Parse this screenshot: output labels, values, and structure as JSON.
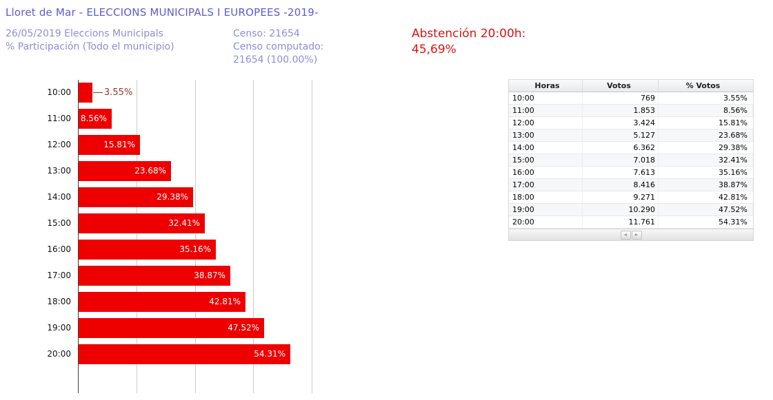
{
  "page": {
    "title": "Lloret de Mar - ELECCIONS MUNICIPALS I EUROPEES -2019-",
    "subtitle_line1": "26/05/2019 Eleccions Municipals",
    "subtitle_line2": "% Participación (Todo el municipio)",
    "censo_line1": "Censo: 21654",
    "censo_line2": "Censo computado:",
    "censo_line3": "21654 (100.00%)",
    "abstencion_line1": "Abstención 20:00h:",
    "abstencion_line2": "45,69%"
  },
  "colors": {
    "title_blue": "#5c5cd6",
    "subtitle_blue": "#8c8ce0",
    "abstencion_red": "#e01111",
    "bar_red": "#ee0000",
    "outside_label_red": "#993333",
    "axis": "#3c3c3c",
    "gridline": "#cccccc"
  },
  "chart_data": {
    "type": "bar",
    "orientation": "horizontal",
    "title": "% Participación (Todo el municipio)",
    "categories": [
      "10:00",
      "11:00",
      "12:00",
      "13:00",
      "14:00",
      "15:00",
      "16:00",
      "17:00",
      "18:00",
      "19:00",
      "20:00"
    ],
    "values": [
      3.55,
      8.56,
      15.81,
      23.68,
      29.38,
      32.41,
      35.16,
      38.87,
      42.81,
      47.52,
      54.31
    ],
    "labels": [
      "3.55%",
      "8.56%",
      "15.81%",
      "23.68%",
      "29.38%",
      "32.41%",
      "35.16%",
      "38.87%",
      "42.81%",
      "47.52%",
      "54.31%"
    ],
    "xlabel": "",
    "ylabel": "Horas",
    "xlim": [
      0,
      66
    ],
    "gridlines_pct": [
      15,
      30,
      45,
      60
    ],
    "grid": "vertical-only",
    "legend": "none",
    "outside_label_indices": [
      0
    ]
  },
  "table": {
    "headers": [
      "Horas",
      "Votos",
      "% Votos"
    ],
    "rows": [
      [
        "10:00",
        "769",
        "3.55%"
      ],
      [
        "11:00",
        "1.853",
        "8.56%"
      ],
      [
        "12:00",
        "3.424",
        "15.81%"
      ],
      [
        "13:00",
        "5.127",
        "23.68%"
      ],
      [
        "14:00",
        "6.362",
        "29.38%"
      ],
      [
        "15:00",
        "7.018",
        "32.41%"
      ],
      [
        "16:00",
        "7.613",
        "35.16%"
      ],
      [
        "17:00",
        "8.416",
        "38.87%"
      ],
      [
        "18:00",
        "9.271",
        "42.81%"
      ],
      [
        "19:00",
        "10.290",
        "47.52%"
      ],
      [
        "20:00",
        "11.761",
        "54.31%"
      ]
    ],
    "pagination": {
      "prev_icon": "◄",
      "next_icon": "►"
    }
  }
}
